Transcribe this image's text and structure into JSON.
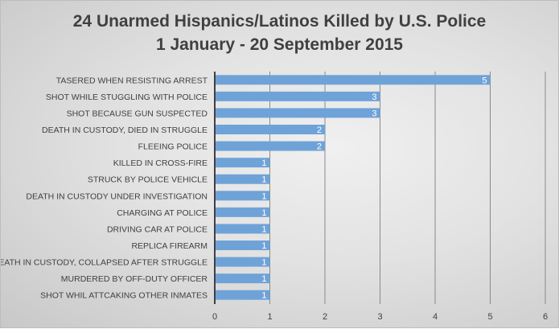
{
  "chart_data": {
    "type": "bar",
    "orientation": "horizontal",
    "title": [
      "24 Unarmed Hispanics/Latinos Killed by U.S. Police",
      "1 January - 20 September 2015"
    ],
    "categories": [
      "TASERED WHEN RESISTING ARREST",
      "SHOT WHILE STUGGLING WITH POLICE",
      "SHOT BECAUSE GUN SUSPECTED",
      "DEATH IN CUSTODY, DIED IN STRUGGLE",
      "FLEEING POLICE",
      "KILLED IN CROSS-FIRE",
      "STRUCK BY POLICE VEHICLE",
      "DEATH IN CUSTODY UNDER INVESTIGATION",
      "CHARGING AT POLICE",
      "DRIVING CAR AT POLICE",
      "REPLICA FIREARM",
      "DEATH IN CUSTODY, COLLAPSED AFTER STRUGGLE",
      "MURDERED BY OFF-DUTY OFFICER",
      "SHOT WHIL ATTCAKING OTHER INMATES"
    ],
    "values": [
      5,
      3,
      3,
      2,
      2,
      1,
      1,
      1,
      1,
      1,
      1,
      1,
      1,
      1
    ],
    "xlim": [
      0,
      6
    ],
    "xticks": [
      0,
      1,
      2,
      3,
      4,
      5,
      6
    ],
    "grid": "vertical",
    "data_labels": true,
    "bar_color": "#6fa3d8",
    "xlabel": "",
    "ylabel": ""
  }
}
